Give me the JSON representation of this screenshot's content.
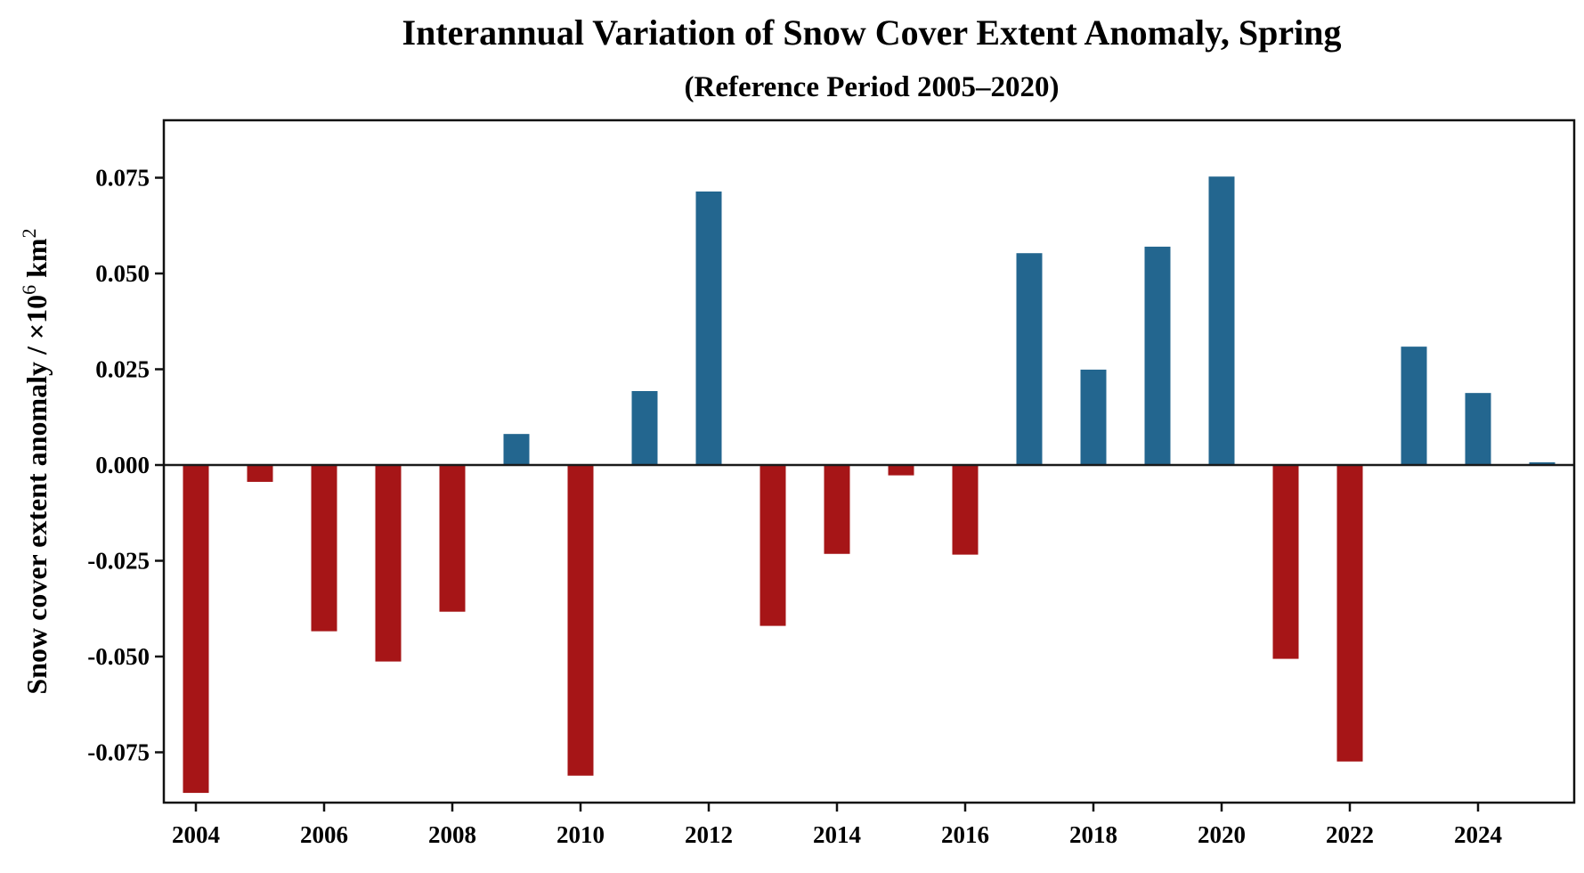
{
  "chart_data": {
    "type": "bar",
    "title": "Interannual Variation of Snow Cover Extent Anomaly, Spring",
    "subtitle": "(Reference Period 2005–2020)",
    "xlabel": "",
    "ylabel": "Snow cover extent anomaly / ×10",
    "ylabel_superscript": "6",
    "ylabel_unit": " km",
    "ylabel_unit_superscript": "2",
    "x": [
      2004,
      2005,
      2006,
      2007,
      2008,
      2009,
      2010,
      2011,
      2012,
      2013,
      2014,
      2015,
      2016,
      2017,
      2018,
      2019,
      2020,
      2021,
      2022,
      2023,
      2024,
      2025
    ],
    "values": [
      -0.0856,
      -0.0044,
      -0.0434,
      -0.0513,
      -0.0383,
      0.0081,
      -0.0811,
      0.0193,
      0.0714,
      -0.042,
      -0.0232,
      -0.0027,
      -0.0234,
      0.0553,
      0.0249,
      0.057,
      0.0753,
      -0.0506,
      -0.0774,
      0.0309,
      0.0188,
      0.0007
    ],
    "xlim": [
      2003.5,
      2025.5
    ],
    "ylim": [
      -0.09,
      0.09
    ],
    "xticks": [
      2004,
      2006,
      2008,
      2010,
      2012,
      2014,
      2016,
      2018,
      2020,
      2022,
      2024
    ],
    "xtick_labels": [
      "2004",
      "2006",
      "2008",
      "2010",
      "2012",
      "2014",
      "2016",
      "2018",
      "2020",
      "2022",
      "2024"
    ],
    "yticks": [
      0.075,
      0.05,
      0.025,
      0.0,
      -0.025,
      -0.05,
      -0.075
    ],
    "ytick_labels": [
      "0.075",
      "0.050",
      "0.025",
      "0.000",
      "-0.025",
      "-0.050",
      "-0.075"
    ],
    "colors": {
      "positive": "#23668f",
      "negative": "#a61517"
    },
    "grid": false,
    "legend": "none",
    "zero_line": true
  }
}
